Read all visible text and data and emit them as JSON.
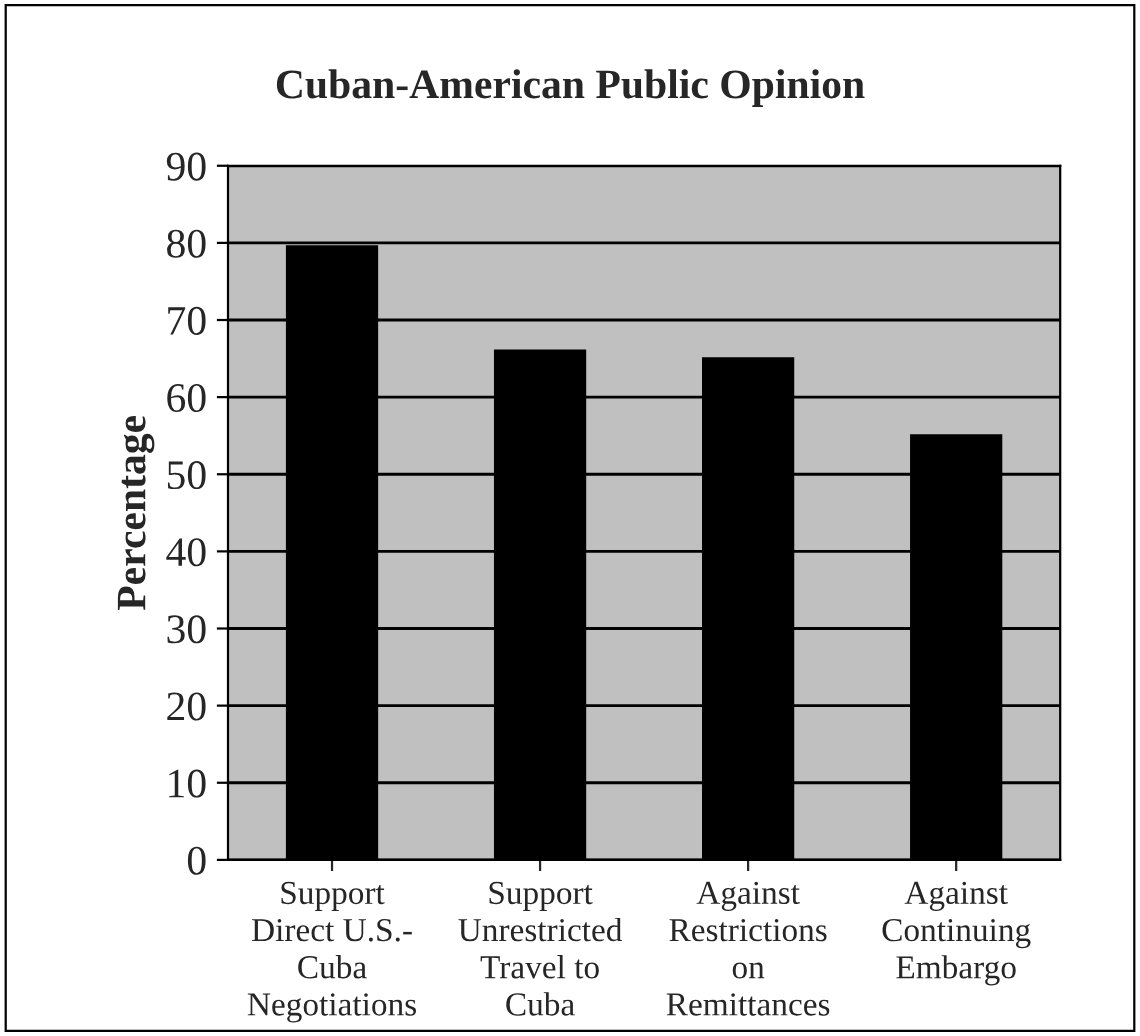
{
  "chart_data": {
    "type": "bar",
    "title": "Cuban-American Public Opinion",
    "ylabel": "Percentage",
    "categories": [
      "Support\nDirect U.S.-\nCuba\nNegotiations",
      "Support\nUnrestricted\nTravel to\nCuba",
      "Against\nRestrictions\non\nRemittances",
      "Against\nContinuing\nEmbargo"
    ],
    "values": [
      79.5,
      66,
      65,
      55
    ],
    "color": "#000000",
    "ylim": [
      0,
      90
    ],
    "yticks": [
      0,
      10,
      20,
      30,
      40,
      50,
      60,
      70,
      80,
      90
    ],
    "grid": "y",
    "legend": false
  }
}
